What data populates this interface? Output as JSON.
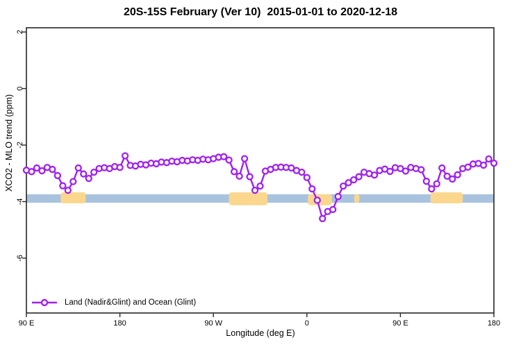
{
  "chart_data": {
    "type": "line",
    "title": "20S-15S February (Ver 10)  2015-01-01 to 2020-12-18",
    "xlabel": "Longitude (deg E)",
    "ylabel": "XCO2 - MLO trend (ppm)",
    "xlim": [
      -270,
      180
    ],
    "ylim": [
      -7.94,
      2.15
    ],
    "grid": false,
    "legend_position": "bottom-left",
    "x_ticks": [
      {
        "value": -270,
        "label": "90 E"
      },
      {
        "value": -180,
        "label": "180"
      },
      {
        "value": -90,
        "label": "90 W"
      },
      {
        "value": 0,
        "label": "0"
      },
      {
        "value": 90,
        "label": "90 E"
      },
      {
        "value": 180,
        "label": "180"
      }
    ],
    "y_ticks": [
      {
        "value": 2,
        "label": "2"
      },
      {
        "value": 0,
        "label": "0"
      },
      {
        "value": -2,
        "label": "-2"
      },
      {
        "value": -4,
        "label": "-4"
      },
      {
        "value": -6,
        "label": "-6"
      }
    ],
    "reference_band": {
      "y_top": -3.74,
      "y_bottom": -4.04,
      "color": "#A9C3DE"
    },
    "land_regions": {
      "color": "#FBD78E",
      "regions": [
        {
          "x0": -237,
          "x1": -213,
          "y_top": -3.67,
          "y_bottom": -4.06
        },
        {
          "x0": -75,
          "x1": -38,
          "y_top": -3.67,
          "y_bottom": -4.13
        },
        {
          "x0": 1,
          "x1": 24,
          "y_top": -3.74,
          "y_bottom": -4.13
        },
        {
          "x0": 45.5,
          "x1": 50.5,
          "y_top": -3.74,
          "y_bottom": -4.04
        },
        {
          "x0": 119,
          "x1": 150,
          "y_top": -3.67,
          "y_bottom": -4.06
        }
      ]
    },
    "series": [
      {
        "name": "Land (Nadir&Glint) and Ocean (Glint)",
        "color": "#A020F0",
        "marker": "open-circle",
        "x": [
          -270,
          -265,
          -260,
          -255,
          -250,
          -245,
          -240,
          -235,
          -230,
          -225,
          -220,
          -215,
          -210,
          -205,
          -200,
          -195,
          -190,
          -185,
          -180,
          -175,
          -170,
          -165,
          -160,
          -155,
          -150,
          -145,
          -140,
          -135,
          -130,
          -125,
          -120,
          -115,
          -110,
          -105,
          -100,
          -95,
          -90,
          -85,
          -80,
          -75,
          -70,
          -65,
          -60,
          -55,
          -50,
          -45,
          -40,
          -35,
          -30,
          -25,
          -20,
          -15,
          -10,
          -5,
          0,
          5,
          10,
          15,
          20,
          25,
          30,
          35,
          40,
          45,
          50,
          55,
          60,
          65,
          70,
          75,
          80,
          85,
          90,
          95,
          100,
          105,
          110,
          115,
          120,
          125,
          130,
          135,
          140,
          145,
          150,
          155,
          160,
          165,
          170,
          175,
          180
        ],
        "y": [
          -2.89,
          -2.94,
          -2.81,
          -2.91,
          -2.79,
          -2.86,
          -3.08,
          -3.44,
          -3.6,
          -3.29,
          -2.81,
          -3.02,
          -3.18,
          -2.96,
          -2.83,
          -2.8,
          -2.83,
          -2.76,
          -2.79,
          -2.38,
          -2.72,
          -2.74,
          -2.68,
          -2.7,
          -2.64,
          -2.66,
          -2.6,
          -2.62,
          -2.57,
          -2.59,
          -2.54,
          -2.56,
          -2.52,
          -2.54,
          -2.5,
          -2.52,
          -2.48,
          -2.43,
          -2.41,
          -2.53,
          -2.94,
          -3.1,
          -2.48,
          -3.12,
          -3.6,
          -3.45,
          -2.92,
          -2.86,
          -2.79,
          -2.78,
          -2.79,
          -2.81,
          -2.9,
          -2.96,
          -3.15,
          -3.55,
          -3.95,
          -4.6,
          -4.35,
          -4.28,
          -3.82,
          -3.45,
          -3.33,
          -3.23,
          -3.12,
          -2.96,
          -3.01,
          -3.06,
          -2.9,
          -2.85,
          -2.93,
          -2.8,
          -2.83,
          -2.92,
          -2.79,
          -2.83,
          -2.87,
          -3.28,
          -3.55,
          -3.37,
          -2.81,
          -3.1,
          -3.2,
          -3.05,
          -2.83,
          -2.78,
          -2.67,
          -2.65,
          -2.71,
          -2.49,
          -2.64
        ]
      }
    ]
  }
}
